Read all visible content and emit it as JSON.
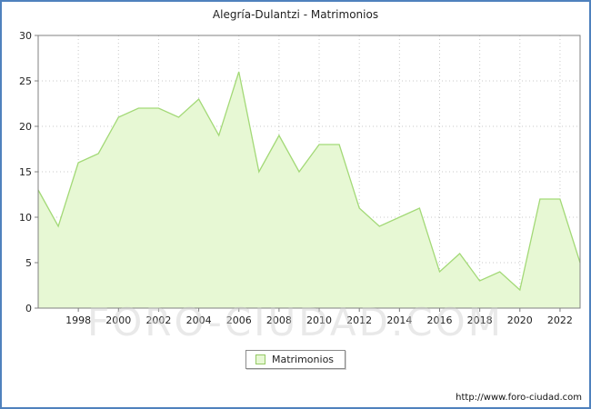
{
  "title": "Alegría-Dulantzi - Matrimonios",
  "legend": {
    "label": "Matrimonios"
  },
  "watermark": "FORO-CIUDAD.COM",
  "footer": {
    "url": "http://www.foro-ciudad.com"
  },
  "chart_data": {
    "type": "area",
    "title": "Alegría-Dulantzi - Matrimonios",
    "x": [
      1996,
      1997,
      1998,
      1999,
      2000,
      2001,
      2002,
      2003,
      2004,
      2005,
      2006,
      2007,
      2008,
      2009,
      2010,
      2011,
      2012,
      2013,
      2014,
      2015,
      2016,
      2017,
      2018,
      2019,
      2020,
      2021,
      2022,
      2023
    ],
    "series": [
      {
        "name": "Matrimonios",
        "values": [
          13,
          9,
          16,
          17,
          21,
          22,
          22,
          21,
          23,
          19,
          26,
          15,
          19,
          15,
          18,
          18,
          11,
          9,
          10,
          11,
          4,
          6,
          3,
          4,
          2,
          12,
          12,
          5
        ]
      }
    ],
    "xlabel": "",
    "ylabel": "",
    "ylim": [
      0,
      30
    ],
    "yticks": [
      0,
      5,
      10,
      15,
      20,
      25,
      30
    ],
    "xticks": [
      1998,
      2000,
      2002,
      2004,
      2006,
      2008,
      2010,
      2012,
      2014,
      2016,
      2018,
      2020,
      2022
    ],
    "grid": true,
    "legend_position": "bottom",
    "colors": {
      "frame_border": "#4f81bd",
      "area_fill": "#e7f8d4",
      "line": "#a3d977",
      "grid": "#c8c8c8",
      "plot_border": "#808080",
      "tick_text": "#222222"
    }
  }
}
